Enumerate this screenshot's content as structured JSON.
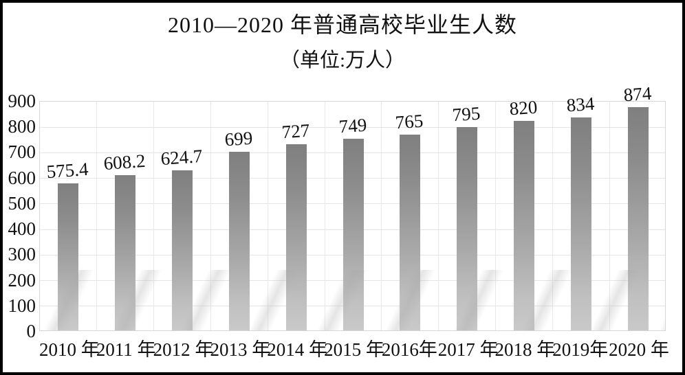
{
  "frame": {
    "background": "#ffffff",
    "border_color": "#000000"
  },
  "chart_data": {
    "type": "bar",
    "title": "2010—2020 年普通高校毕业生人数",
    "subtitle": "（单位:万人）",
    "categories": [
      "2010 年",
      "2011 年",
      "2012 年",
      "2013 年",
      "2014 年",
      "2015 年",
      "2016年",
      "2017 年",
      "2018 年",
      "2019年",
      "2020 年"
    ],
    "values": [
      575.4,
      608.2,
      624.7,
      699,
      727,
      749,
      765,
      795,
      820,
      834,
      874
    ],
    "bar_labels": [
      "575.4",
      "608.2",
      "624.7",
      "699",
      "727",
      "749",
      "765",
      "795",
      "820",
      "834",
      "874"
    ],
    "xlabel": "",
    "ylabel": "",
    "ylim": [
      0,
      900
    ],
    "yticks": [
      0,
      100,
      200,
      300,
      400,
      500,
      600,
      700,
      800,
      900
    ],
    "grid": true,
    "legend_position": "none",
    "styles": {
      "bar_gradient_top": "#7f7f7f",
      "bar_gradient_bottom": "#c9c9c9",
      "gridline_color": "#e4e4e4",
      "plot_border_color": "#d6d6d6",
      "text_color": "#111111"
    }
  }
}
